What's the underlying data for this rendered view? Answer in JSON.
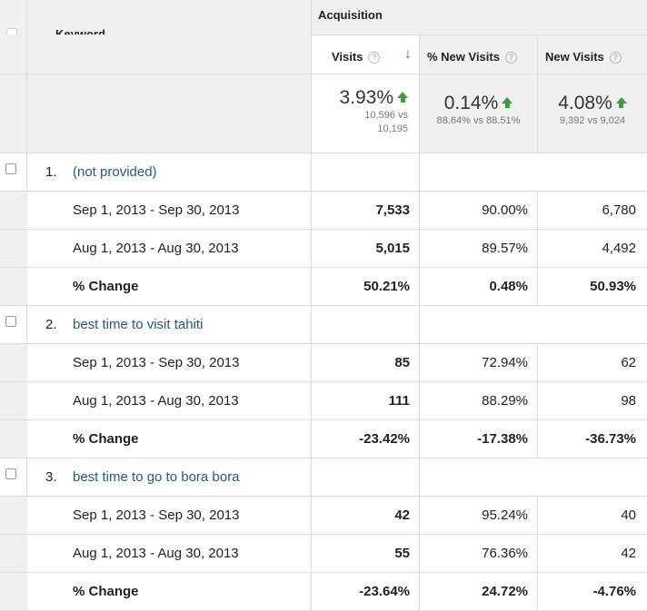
{
  "header": {
    "group_label": "Acquisition",
    "keyword_label": "Keyword",
    "columns": [
      {
        "label": "Visits",
        "help": "?"
      },
      {
        "label": "% New Visits",
        "help": "?"
      },
      {
        "label": "New Visits",
        "help": "?"
      }
    ],
    "sort_arrow": "↓"
  },
  "totals": [
    {
      "value": "3.93%",
      "line1": "10,596 vs",
      "line2": "10,195"
    },
    {
      "value": "0.14%",
      "line1": "88.64% vs 88.51%"
    },
    {
      "value": "4.08%",
      "line1": "9,392 vs 9,024"
    }
  ],
  "groups": [
    {
      "index": "1.",
      "keyword": "(not provided)",
      "rows": [
        {
          "label": "Sep 1, 2013 - Sep 30, 2013",
          "visits": "7,533",
          "pct_new": "90.00%",
          "new_visits": "6,780"
        },
        {
          "label": "Aug 1, 2013 - Aug 30, 2013",
          "visits": "5,015",
          "pct_new": "89.57%",
          "new_visits": "4,492"
        },
        {
          "label": "% Change",
          "visits": "50.21%",
          "pct_new": "0.48%",
          "new_visits": "50.93%"
        }
      ]
    },
    {
      "index": "2.",
      "keyword": "best time to visit tahiti",
      "rows": [
        {
          "label": "Sep 1, 2013 - Sep 30, 2013",
          "visits": "85",
          "pct_new": "72.94%",
          "new_visits": "62"
        },
        {
          "label": "Aug 1, 2013 - Aug 30, 2013",
          "visits": "111",
          "pct_new": "88.29%",
          "new_visits": "98"
        },
        {
          "label": "% Change",
          "visits": "-23.42%",
          "pct_new": "-17.38%",
          "new_visits": "-36.73%"
        }
      ]
    },
    {
      "index": "3.",
      "keyword": "best time to go to bora bora",
      "rows": [
        {
          "label": "Sep 1, 2013 - Sep 30, 2013",
          "visits": "42",
          "pct_new": "95.24%",
          "new_visits": "40"
        },
        {
          "label": "Aug 1, 2013 - Aug 30, 2013",
          "visits": "55",
          "pct_new": "76.36%",
          "new_visits": "42"
        },
        {
          "label": "% Change",
          "visits": "-23.64%",
          "pct_new": "24.72%",
          "new_visits": "-4.76%"
        }
      ]
    }
  ],
  "colors": {
    "link": "#2b5785",
    "up_arrow": "#3c9d3c",
    "header_bg": "#f0f0f0"
  }
}
